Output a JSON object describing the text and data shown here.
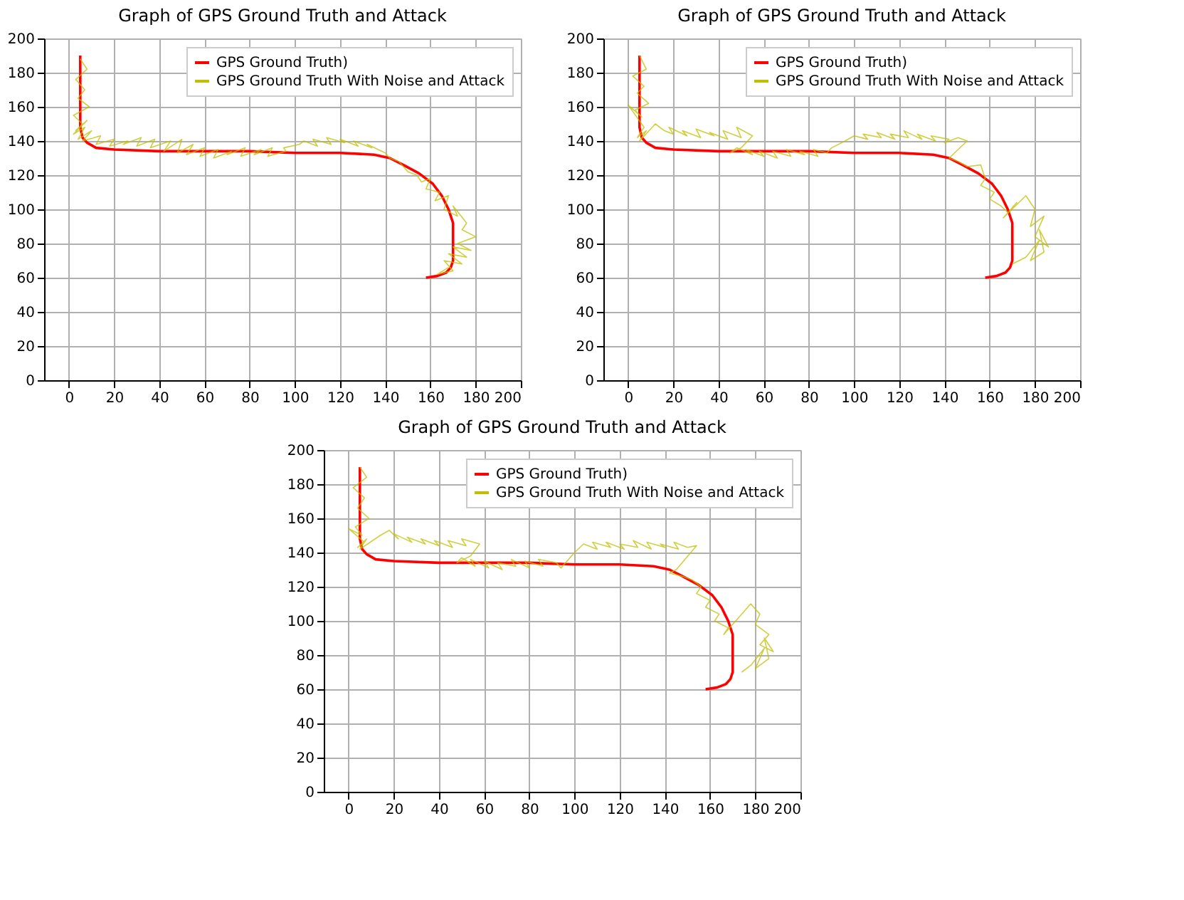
{
  "chart_data": [
    {
      "type": "line",
      "title": "Graph of GPS Ground Truth and Attack",
      "xlim": [
        -11,
        200
      ],
      "ylim": [
        0,
        200
      ],
      "xticks": [
        0,
        20,
        40,
        60,
        80,
        100,
        120,
        140,
        160,
        180,
        200
      ],
      "yticks": [
        0,
        20,
        40,
        60,
        80,
        100,
        120,
        140,
        160,
        180,
        200
      ],
      "grid": true,
      "legend": "top right",
      "series": [
        {
          "name": "GPS Ground Truth)",
          "color": "#ff0000",
          "x": [
            5,
            5,
            5,
            5,
            6,
            8,
            12,
            20,
            40,
            60,
            80,
            100,
            120,
            135,
            142,
            148,
            155,
            161,
            165,
            168,
            170,
            170,
            170,
            169,
            167,
            163,
            158
          ],
          "values": [
            190,
            175,
            160,
            148,
            142,
            139,
            136,
            135,
            134,
            134,
            134,
            133,
            133,
            132,
            130,
            126,
            121,
            115,
            108,
            100,
            92,
            80,
            70,
            66,
            63,
            61,
            60
          ]
        },
        {
          "name": "GPS Ground Truth With Noise and Attack",
          "color": "#bfbf00",
          "x": [
            5,
            8,
            3,
            7,
            4,
            9,
            2,
            6,
            3,
            8,
            2,
            7,
            4,
            10,
            6,
            14,
            12,
            20,
            18,
            26,
            24,
            32,
            30,
            38,
            36,
            45,
            42,
            50,
            48,
            55,
            52,
            60,
            58,
            66,
            64,
            72,
            70,
            78,
            76,
            85,
            82,
            90,
            88,
            96,
            95,
            102,
            104,
            110,
            108,
            116,
            114,
            122,
            120,
            128,
            126,
            134,
            132,
            140,
            142,
            146,
            148,
            150,
            154,
            156,
            160,
            158,
            164,
            162,
            168,
            166,
            172,
            170,
            176,
            174,
            180,
            172,
            178,
            170,
            176,
            168,
            174,
            166,
            170,
            163,
            168
          ],
          "values": [
            188,
            182,
            176,
            170,
            165,
            160,
            155,
            150,
            146,
            152,
            144,
            148,
            141,
            146,
            140,
            143,
            138,
            141,
            137,
            140,
            138,
            142,
            137,
            141,
            136,
            140,
            134,
            141,
            133,
            138,
            132,
            136,
            131,
            135,
            130,
            134,
            132,
            136,
            131,
            135,
            132,
            136,
            131,
            134,
            136,
            138,
            140,
            137,
            141,
            138,
            142,
            139,
            141,
            137,
            140,
            136,
            138,
            133,
            130,
            128,
            125,
            122,
            120,
            116,
            118,
            112,
            110,
            105,
            108,
            100,
            96,
            102,
            92,
            88,
            84,
            80,
            76,
            78,
            72,
            74,
            68,
            70,
            64,
            62,
            66
          ]
        }
      ]
    },
    {
      "type": "line",
      "title": "Graph of GPS Ground Truth and Attack",
      "xlim": [
        -11,
        200
      ],
      "ylim": [
        0,
        200
      ],
      "xticks": [
        0,
        20,
        40,
        60,
        80,
        100,
        120,
        140,
        160,
        180,
        200
      ],
      "yticks": [
        0,
        20,
        40,
        60,
        80,
        100,
        120,
        140,
        160,
        180,
        200
      ],
      "grid": true,
      "legend": "top right",
      "series": [
        {
          "name": "GPS Ground Truth)",
          "color": "#ff0000",
          "x": [
            5,
            5,
            5,
            5,
            6,
            8,
            12,
            20,
            40,
            60,
            80,
            100,
            120,
            135,
            142,
            148,
            155,
            161,
            165,
            168,
            170,
            170,
            170,
            169,
            167,
            163,
            158
          ],
          "values": [
            190,
            175,
            160,
            148,
            142,
            139,
            136,
            135,
            134,
            134,
            134,
            133,
            133,
            132,
            130,
            126,
            121,
            115,
            108,
            100,
            92,
            80,
            70,
            66,
            63,
            61,
            60
          ]
        },
        {
          "name": "GPS Ground Truth With Noise and Attack",
          "color": "#bfbf00",
          "x": [
            5,
            8,
            2,
            7,
            4,
            9,
            3,
            6,
            0,
            7,
            4,
            8,
            5,
            12,
            16,
            20,
            18,
            26,
            24,
            32,
            30,
            38,
            36,
            44,
            42,
            50,
            48,
            55,
            50,
            45,
            48,
            55,
            52,
            60,
            58,
            66,
            64,
            72,
            70,
            78,
            76,
            84,
            82,
            88,
            90,
            96,
            100,
            106,
            104,
            112,
            110,
            118,
            116,
            124,
            122,
            130,
            128,
            136,
            134,
            142,
            140,
            146,
            150,
            142,
            146,
            150,
            156,
            158,
            156,
            162,
            160,
            165,
            168,
            172,
            166,
            176,
            180,
            178,
            184,
            180,
            186,
            182,
            184,
            178,
            182,
            176,
            170
          ],
          "values": [
            190,
            182,
            178,
            172,
            168,
            162,
            158,
            154,
            161,
            148,
            142,
            146,
            140,
            150,
            146,
            144,
            148,
            143,
            146,
            142,
            147,
            143,
            145,
            141,
            146,
            142,
            148,
            143,
            136,
            133,
            136,
            132,
            135,
            131,
            134,
            130,
            134,
            131,
            135,
            132,
            134,
            131,
            135,
            133,
            136,
            140,
            143,
            141,
            144,
            142,
            145,
            141,
            144,
            142,
            146,
            141,
            144,
            140,
            143,
            141,
            139,
            142,
            140,
            130,
            128,
            125,
            126,
            118,
            114,
            110,
            106,
            102,
            98,
            104,
            95,
            108,
            100,
            90,
            96,
            84,
            78,
            88,
            75,
            70,
            82,
            72,
            68
          ]
        }
      ]
    },
    {
      "type": "line",
      "title": "Graph of GPS Ground Truth and Attack",
      "xlim": [
        -11,
        200
      ],
      "ylim": [
        0,
        200
      ],
      "xticks": [
        0,
        20,
        40,
        60,
        80,
        100,
        120,
        140,
        160,
        180,
        200
      ],
      "yticks": [
        0,
        20,
        40,
        60,
        80,
        100,
        120,
        140,
        160,
        180,
        200
      ],
      "grid": true,
      "legend": "top right",
      "series": [
        {
          "name": "GPS Ground Truth)",
          "color": "#ff0000",
          "x": [
            5,
            5,
            5,
            5,
            6,
            8,
            12,
            20,
            40,
            60,
            80,
            100,
            120,
            135,
            142,
            148,
            155,
            161,
            165,
            168,
            170,
            170,
            170,
            169,
            167,
            163,
            158
          ],
          "values": [
            190,
            175,
            160,
            148,
            142,
            139,
            136,
            135,
            134,
            134,
            134,
            133,
            133,
            132,
            130,
            126,
            121,
            115,
            108,
            100,
            92,
            80,
            70,
            66,
            63,
            61,
            60
          ]
        },
        {
          "name": "GPS Ground Truth With Noise and Attack",
          "color": "#bfbf00",
          "x": [
            5,
            8,
            2,
            7,
            4,
            9,
            3,
            6,
            0,
            7,
            4,
            8,
            5,
            14,
            18,
            22,
            20,
            28,
            26,
            34,
            32,
            40,
            38,
            46,
            44,
            52,
            50,
            58,
            54,
            48,
            50,
            56,
            54,
            62,
            60,
            68,
            66,
            74,
            72,
            80,
            78,
            86,
            84,
            92,
            94,
            100,
            104,
            110,
            108,
            116,
            114,
            122,
            120,
            128,
            126,
            134,
            132,
            140,
            138,
            146,
            144,
            150,
            154,
            145,
            142,
            148,
            152,
            156,
            154,
            160,
            158,
            164,
            162,
            168,
            166,
            178,
            182,
            180,
            186,
            182,
            188,
            184,
            186,
            180,
            184,
            178,
            174
          ],
          "values": [
            190,
            184,
            178,
            172,
            166,
            160,
            155,
            150,
            154,
            146,
            143,
            148,
            142,
            150,
            153,
            148,
            151,
            146,
            149,
            145,
            148,
            144,
            147,
            143,
            147,
            144,
            148,
            145,
            138,
            134,
            137,
            132,
            136,
            131,
            135,
            130,
            134,
            132,
            136,
            131,
            135,
            132,
            136,
            134,
            131,
            140,
            145,
            142,
            146,
            143,
            146,
            142,
            145,
            143,
            147,
            142,
            146,
            143,
            145,
            142,
            146,
            143,
            144,
            130,
            128,
            126,
            124,
            120,
            116,
            112,
            108,
            104,
            100,
            96,
            92,
            110,
            104,
            98,
            92,
            86,
            82,
            90,
            78,
            72,
            84,
            74,
            70
          ]
        }
      ]
    }
  ]
}
